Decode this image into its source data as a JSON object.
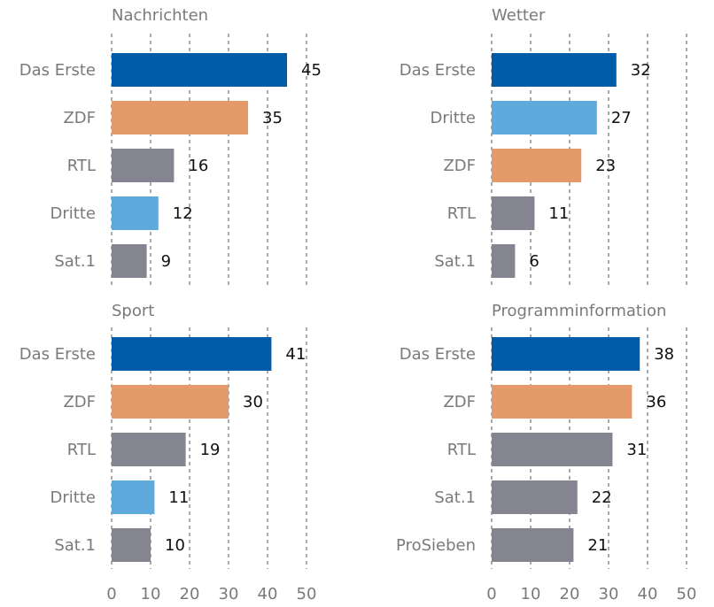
{
  "chart_data": [
    {
      "type": "bar",
      "title": "Nachrichten",
      "categories": [
        "Das Erste",
        "ZDF",
        "RTL",
        "Dritte",
        "Sat.1"
      ],
      "values": [
        45,
        35,
        16,
        12,
        9
      ],
      "colors": [
        "#005ca9",
        "#e59a69",
        "#858491",
        "#5faadc",
        "#858491"
      ],
      "xlim": [
        0,
        50
      ],
      "grid": true
    },
    {
      "type": "bar",
      "title": "Wetter",
      "categories": [
        "Das Erste",
        "Dritte",
        "ZDF",
        "RTL",
        "Sat.1"
      ],
      "values": [
        32,
        27,
        23,
        11,
        6
      ],
      "colors": [
        "#005ca9",
        "#5faadc",
        "#e59a69",
        "#858491",
        "#858491"
      ],
      "xlim": [
        0,
        50
      ],
      "grid": true
    },
    {
      "type": "bar",
      "title": "Sport",
      "categories": [
        "Das Erste",
        "ZDF",
        "RTL",
        "Dritte",
        "Sat.1"
      ],
      "values": [
        41,
        30,
        19,
        11,
        10
      ],
      "colors": [
        "#005ca9",
        "#e59a69",
        "#858491",
        "#5faadc",
        "#858491"
      ],
      "xlim": [
        0,
        50
      ],
      "xticks": [
        0,
        10,
        20,
        30,
        40,
        50
      ],
      "grid": true
    },
    {
      "type": "bar",
      "title": "Programminformation",
      "categories": [
        "Das Erste",
        "ZDF",
        "RTL",
        "Sat.1",
        "ProSieben"
      ],
      "values": [
        38,
        36,
        31,
        22,
        21
      ],
      "colors": [
        "#005ca9",
        "#e59a69",
        "#858491",
        "#858491",
        "#858491"
      ],
      "xlim": [
        0,
        50
      ],
      "xticks": [
        0,
        10,
        20,
        30,
        40,
        50
      ],
      "grid": true
    }
  ]
}
